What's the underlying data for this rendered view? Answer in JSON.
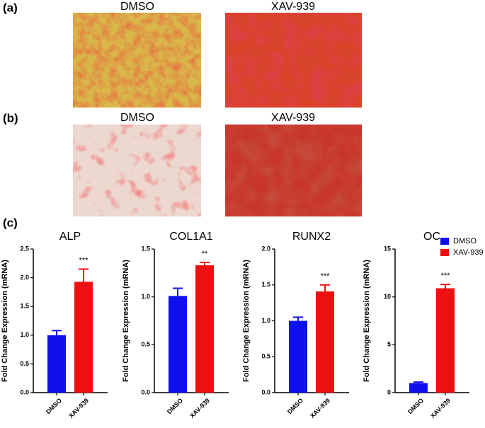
{
  "panels": {
    "a": "(a)",
    "b": "(b)",
    "c": "(c)"
  },
  "image_labels": {
    "a": [
      "DMSO",
      "XAV-939"
    ],
    "b": [
      "DMSO",
      "XAV-939"
    ]
  },
  "legend": [
    {
      "name": "DMSO",
      "color": "#1010ee"
    },
    {
      "name": "XAV-939",
      "color": "#ee1010"
    }
  ],
  "chart_data": [
    {
      "type": "bar",
      "title": "ALP",
      "ylabel": "Fold Change Expression (mRNA)",
      "categories": [
        "DMSO",
        "XAV-939"
      ],
      "values": [
        1.0,
        1.93
      ],
      "errors": [
        0.08,
        0.22
      ],
      "annotation": "***",
      "ylim": [
        0,
        2.5
      ],
      "yticks": [
        {
          "value": 0,
          "label": "0.0"
        },
        {
          "value": 0.5,
          "label": "0.5"
        },
        {
          "value": 1,
          "label": "1.0"
        },
        {
          "value": 1.5,
          "label": "1.5"
        },
        {
          "value": 2,
          "label": "2.0"
        },
        {
          "value": 2.5,
          "label": "2.5"
        }
      ]
    },
    {
      "type": "bar",
      "title": "COL1A1",
      "ylabel": "Fold Change Expression (mRNA)",
      "categories": [
        "DMSO",
        "XAV-939"
      ],
      "values": [
        1.01,
        1.33
      ],
      "errors": [
        0.08,
        0.03
      ],
      "annotation": "**",
      "ylim": [
        0,
        1.5
      ],
      "yticks": [
        {
          "value": 0,
          "label": "0.0"
        },
        {
          "value": 0.5,
          "label": "0.5"
        },
        {
          "value": 1,
          "label": "1.0"
        },
        {
          "value": 1.5,
          "label": "1.5"
        }
      ]
    },
    {
      "type": "bar",
      "title": "RUNX2",
      "ylabel": "Fold Change Expression (mRNA)",
      "categories": [
        "DMSO",
        "XAV-939"
      ],
      "values": [
        1.0,
        1.41
      ],
      "errors": [
        0.05,
        0.09
      ],
      "annotation": "***",
      "ylim": [
        0,
        2.0
      ],
      "yticks": [
        {
          "value": 0,
          "label": "0.0"
        },
        {
          "value": 0.5,
          "label": "0.5"
        },
        {
          "value": 1,
          "label": "1.0"
        },
        {
          "value": 1.5,
          "label": "1.5"
        },
        {
          "value": 2,
          "label": "2.0"
        }
      ]
    },
    {
      "type": "bar",
      "title": "OC",
      "ylabel": "Fold Change Expression (mRNA)",
      "categories": [
        "DMSO",
        "XAV-939"
      ],
      "values": [
        1.0,
        10.9
      ],
      "errors": [
        0.1,
        0.4
      ],
      "annotation": "***",
      "ylim": [
        0,
        15
      ],
      "yticks": [
        0,
        5,
        10,
        15
      ]
    }
  ]
}
